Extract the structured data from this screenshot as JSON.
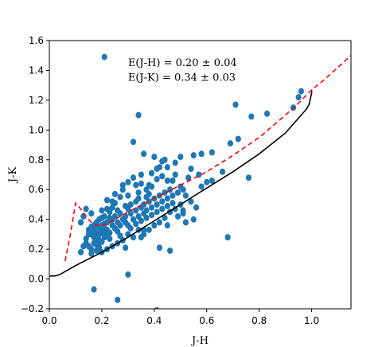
{
  "chart_data": {
    "type": "scatter",
    "xlabel": "J-H",
    "ylabel": "J-K",
    "xlim": [
      0.0,
      1.15
    ],
    "ylim": [
      -0.2,
      1.6
    ],
    "x_ticks": [
      0.0,
      0.2,
      0.4,
      0.6,
      0.8,
      1.0
    ],
    "x_tick_labels": [
      "0.0",
      "0.2",
      "0.4",
      "0.6",
      "0.8",
      "1.0"
    ],
    "y_ticks": [
      -0.2,
      0.0,
      0.2,
      0.4,
      0.6,
      0.8,
      1.0,
      1.2,
      1.4,
      1.6
    ],
    "y_tick_labels": [
      "−0.2",
      "0.0",
      "0.2",
      "0.4",
      "0.6",
      "0.8",
      "1.0",
      "1.2",
      "1.4",
      "1.6"
    ],
    "grid": false,
    "annotations": [
      {
        "text": "E(J-H)  = 0.20 ± 0.04",
        "x": 0.3,
        "y": 1.43
      },
      {
        "text": "E(J-K)  = 0.34 ± 0.03",
        "x": 0.3,
        "y": 1.33
      }
    ],
    "colors": {
      "points": "#1f77b4",
      "main_sequence": "#000000",
      "reddened_track": "#ff0000"
    },
    "series": [
      {
        "kind": "scatter",
        "points": [
          [
            0.21,
            1.49
          ],
          [
            0.34,
            1.1
          ],
          [
            0.32,
            0.92
          ],
          [
            0.36,
            0.84
          ],
          [
            0.4,
            0.82
          ],
          [
            0.43,
            0.79
          ],
          [
            0.44,
            0.8
          ],
          [
            0.45,
            0.75
          ],
          [
            0.48,
            0.78
          ],
          [
            0.5,
            0.82
          ],
          [
            0.55,
            0.83
          ],
          [
            0.58,
            0.84
          ],
          [
            0.62,
            0.85
          ],
          [
            0.69,
            0.91
          ],
          [
            0.72,
            0.94
          ],
          [
            0.71,
            1.17
          ],
          [
            0.77,
            1.09
          ],
          [
            0.83,
            1.11
          ],
          [
            0.96,
            1.26
          ],
          [
            0.93,
            1.15
          ],
          [
            0.95,
            1.22
          ],
          [
            0.66,
            0.72
          ],
          [
            0.76,
            0.68
          ],
          [
            0.54,
            0.74
          ],
          [
            0.53,
            0.68
          ],
          [
            0.48,
            0.7
          ],
          [
            0.5,
            0.62
          ],
          [
            0.47,
            0.66
          ],
          [
            0.42,
            0.75
          ],
          [
            0.41,
            0.67
          ],
          [
            0.39,
            0.62
          ],
          [
            0.38,
            0.57
          ],
          [
            0.37,
            0.6
          ],
          [
            0.35,
            0.64
          ],
          [
            0.33,
            0.63
          ],
          [
            0.34,
            0.58
          ],
          [
            0.3,
            0.56
          ],
          [
            0.28,
            0.6
          ],
          [
            0.27,
            0.55
          ],
          [
            0.25,
            0.51
          ],
          [
            0.24,
            0.48
          ],
          [
            0.23,
            0.45
          ],
          [
            0.22,
            0.47
          ],
          [
            0.21,
            0.42
          ],
          [
            0.2,
            0.41
          ],
          [
            0.19,
            0.4
          ],
          [
            0.18,
            0.38
          ],
          [
            0.17,
            0.36
          ],
          [
            0.16,
            0.35
          ],
          [
            0.15,
            0.33
          ],
          [
            0.16,
            0.3
          ],
          [
            0.17,
            0.28
          ],
          [
            0.18,
            0.27
          ],
          [
            0.19,
            0.3
          ],
          [
            0.2,
            0.32
          ],
          [
            0.21,
            0.34
          ],
          [
            0.22,
            0.33
          ],
          [
            0.24,
            0.36
          ],
          [
            0.26,
            0.38
          ],
          [
            0.28,
            0.4
          ],
          [
            0.29,
            0.42
          ],
          [
            0.31,
            0.44
          ],
          [
            0.33,
            0.46
          ],
          [
            0.35,
            0.48
          ],
          [
            0.36,
            0.5
          ],
          [
            0.38,
            0.52
          ],
          [
            0.4,
            0.54
          ],
          [
            0.42,
            0.56
          ],
          [
            0.44,
            0.58
          ],
          [
            0.46,
            0.6
          ],
          [
            0.31,
            0.5
          ],
          [
            0.3,
            0.47
          ],
          [
            0.27,
            0.44
          ],
          [
            0.25,
            0.42
          ],
          [
            0.24,
            0.4
          ],
          [
            0.22,
            0.38
          ],
          [
            0.21,
            0.37
          ],
          [
            0.19,
            0.35
          ],
          [
            0.17,
            0.33
          ],
          [
            0.15,
            0.3
          ],
          [
            0.14,
            0.27
          ],
          [
            0.14,
            0.24
          ],
          [
            0.15,
            0.22
          ],
          [
            0.16,
            0.2
          ],
          [
            0.17,
            0.24
          ],
          [
            0.18,
            0.23
          ],
          [
            0.19,
            0.21
          ],
          [
            0.2,
            0.25
          ],
          [
            0.21,
            0.28
          ],
          [
            0.22,
            0.3
          ],
          [
            0.23,
            0.31
          ],
          [
            0.25,
            0.34
          ],
          [
            0.26,
            0.32
          ],
          [
            0.27,
            0.36
          ],
          [
            0.29,
            0.38
          ],
          [
            0.3,
            0.36
          ],
          [
            0.32,
            0.4
          ],
          [
            0.34,
            0.42
          ],
          [
            0.36,
            0.44
          ],
          [
            0.37,
            0.46
          ],
          [
            0.39,
            0.48
          ],
          [
            0.41,
            0.5
          ],
          [
            0.43,
            0.52
          ],
          [
            0.45,
            0.54
          ],
          [
            0.47,
            0.56
          ],
          [
            0.49,
            0.58
          ],
          [
            0.51,
            0.6
          ],
          [
            0.52,
            0.56
          ],
          [
            0.5,
            0.5
          ],
          [
            0.48,
            0.47
          ],
          [
            0.46,
            0.45
          ],
          [
            0.44,
            0.41
          ],
          [
            0.42,
            0.38
          ],
          [
            0.4,
            0.36
          ],
          [
            0.38,
            0.33
          ],
          [
            0.36,
            0.3
          ],
          [
            0.34,
            0.33
          ],
          [
            0.32,
            0.28
          ],
          [
            0.3,
            0.3
          ],
          [
            0.28,
            0.26
          ],
          [
            0.26,
            0.24
          ],
          [
            0.24,
            0.22
          ],
          [
            0.22,
            0.2
          ],
          [
            0.2,
            0.18
          ],
          [
            0.18,
            0.19
          ],
          [
            0.16,
            0.17
          ],
          [
            0.19,
            0.26
          ],
          [
            0.23,
            0.27
          ],
          [
            0.27,
            0.29
          ],
          [
            0.31,
            0.34
          ],
          [
            0.33,
            0.37
          ],
          [
            0.35,
            0.39
          ],
          [
            0.37,
            0.41
          ],
          [
            0.39,
            0.43
          ],
          [
            0.41,
            0.45
          ],
          [
            0.43,
            0.47
          ],
          [
            0.45,
            0.49
          ],
          [
            0.47,
            0.51
          ],
          [
            0.54,
            0.52
          ],
          [
            0.56,
            0.48
          ],
          [
            0.51,
            0.44
          ],
          [
            0.49,
            0.42
          ],
          [
            0.55,
            0.4
          ],
          [
            0.52,
            0.38
          ],
          [
            0.51,
            0.46
          ],
          [
            0.42,
            0.21
          ],
          [
            0.46,
            0.19
          ],
          [
            0.35,
            0.28
          ],
          [
            0.36,
            0.33
          ],
          [
            0.29,
            0.21
          ],
          [
            0.58,
            0.62
          ],
          [
            0.6,
            0.65
          ],
          [
            0.62,
            0.66
          ],
          [
            0.57,
            0.7
          ],
          [
            0.68,
            0.28
          ],
          [
            0.45,
            0.36
          ],
          [
            0.17,
            -0.07
          ],
          [
            0.26,
            -0.14
          ],
          [
            0.3,
            0.03
          ],
          [
            0.41,
            -0.21
          ],
          [
            0.13,
            0.42
          ],
          [
            0.12,
            0.38
          ],
          [
            0.14,
            0.47
          ],
          [
            0.13,
            0.22
          ],
          [
            0.12,
            0.18
          ],
          [
            0.16,
            0.44
          ],
          [
            0.2,
            0.46
          ],
          [
            0.22,
            0.53
          ],
          [
            0.25,
            0.57
          ],
          [
            0.28,
            0.63
          ],
          [
            0.3,
            0.65
          ],
          [
            0.32,
            0.68
          ],
          [
            0.35,
            0.7
          ],
          [
            0.39,
            0.71
          ],
          [
            0.41,
            0.74
          ],
          [
            0.43,
            0.69
          ],
          [
            0.45,
            0.66
          ],
          [
            0.33,
            0.52
          ],
          [
            0.37,
            0.55
          ],
          [
            0.29,
            0.49
          ],
          [
            0.26,
            0.46
          ],
          [
            0.24,
            0.52
          ],
          [
            0.23,
            0.41
          ],
          [
            0.21,
            0.3
          ],
          [
            0.19,
            0.24
          ],
          [
            0.17,
            0.3
          ],
          [
            0.18,
            0.33
          ],
          [
            0.2,
            0.36
          ],
          [
            0.38,
            0.63
          ],
          [
            0.34,
            0.54
          ]
        ]
      },
      {
        "kind": "line",
        "style": "solid",
        "points": [
          [
            0.0,
            0.02
          ],
          [
            0.02,
            0.02
          ],
          [
            0.04,
            0.03
          ],
          [
            0.06,
            0.05
          ],
          [
            0.1,
            0.09
          ],
          [
            0.2,
            0.18
          ],
          [
            0.3,
            0.28
          ],
          [
            0.4,
            0.39
          ],
          [
            0.5,
            0.5
          ],
          [
            0.6,
            0.61
          ],
          [
            0.7,
            0.72
          ],
          [
            0.8,
            0.84
          ],
          [
            0.9,
            0.98
          ],
          [
            0.95,
            1.08
          ],
          [
            0.97,
            1.12
          ],
          [
            0.98,
            1.14
          ],
          [
            0.99,
            1.17
          ],
          [
            1.0,
            1.25
          ],
          [
            1.0,
            1.27
          ]
        ]
      },
      {
        "kind": "line",
        "style": "dashed",
        "points": [
          [
            0.06,
            0.12
          ],
          [
            0.08,
            0.3
          ],
          [
            0.1,
            0.51
          ],
          [
            0.12,
            0.47
          ],
          [
            0.14,
            0.42
          ],
          [
            0.16,
            0.38
          ],
          [
            0.18,
            0.36
          ],
          [
            0.2,
            0.36
          ],
          [
            0.22,
            0.37
          ],
          [
            0.25,
            0.4
          ],
          [
            0.3,
            0.45
          ],
          [
            0.4,
            0.54
          ],
          [
            0.5,
            0.63
          ],
          [
            0.6,
            0.72
          ],
          [
            0.7,
            0.83
          ],
          [
            0.8,
            0.95
          ],
          [
            0.9,
            1.1
          ],
          [
            0.95,
            1.18
          ],
          [
            1.0,
            1.27
          ],
          [
            1.05,
            1.34
          ],
          [
            1.15,
            1.5
          ]
        ]
      }
    ]
  }
}
